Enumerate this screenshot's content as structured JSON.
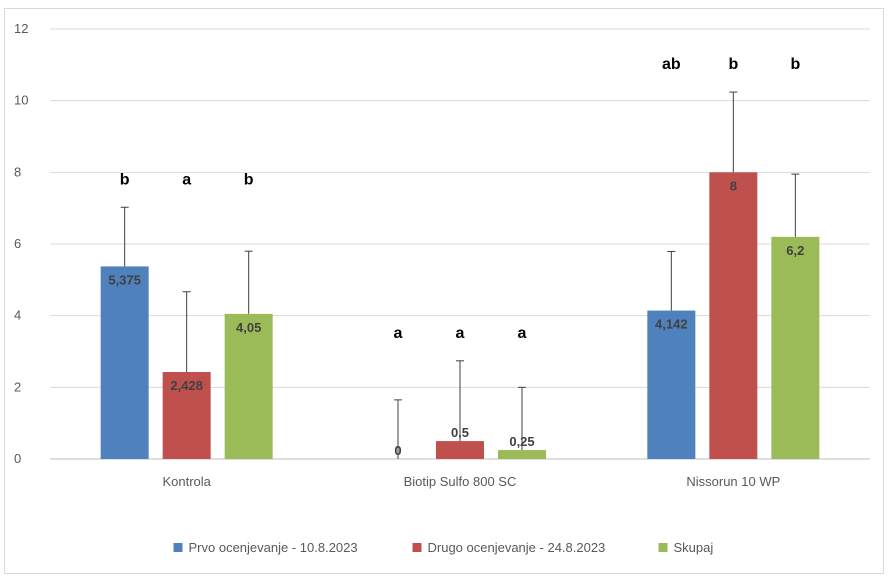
{
  "chart_data": {
    "type": "bar",
    "categories": [
      "Kontrola",
      "Biotip Sulfo 800 SC",
      "Nissorun 10 WP"
    ],
    "series": [
      {
        "name": "Prvo ocenjevanje - 10.8.2023",
        "color": "#4f81bd",
        "values": [
          5.375,
          0,
          4.142
        ],
        "labels": [
          "5,375",
          "0",
          "4,142"
        ],
        "errors": [
          1.65,
          1.65,
          1.65
        ],
        "letters": [
          "b",
          "a",
          "ab"
        ]
      },
      {
        "name": "Drugo ocenjevanje - 24.8.2023",
        "color": "#c0504d",
        "values": [
          2.428,
          0.5,
          8
        ],
        "labels": [
          "2,428",
          "0,5",
          "8"
        ],
        "errors": [
          2.24,
          2.24,
          2.24
        ],
        "letters": [
          "a",
          "a",
          "b"
        ]
      },
      {
        "name": "Skupaj",
        "color": "#9bbb59",
        "values": [
          4.05,
          0.25,
          6.2
        ],
        "labels": [
          "4,05",
          "0,25",
          "6,2"
        ],
        "errors": [
          1.75,
          1.75,
          1.75
        ],
        "letters": [
          "b",
          "a",
          "b"
        ]
      }
    ],
    "yticks": [
      0,
      2,
      4,
      6,
      8,
      10,
      12
    ],
    "ylim": [
      0,
      12
    ],
    "grid": true,
    "legend": "bottom"
  }
}
